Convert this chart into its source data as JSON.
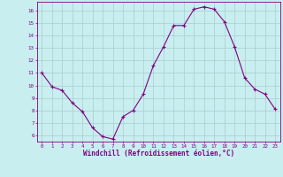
{
  "x": [
    0,
    1,
    2,
    3,
    4,
    5,
    6,
    7,
    8,
    9,
    10,
    11,
    12,
    13,
    14,
    15,
    16,
    17,
    18,
    19,
    20,
    21,
    22,
    23
  ],
  "y": [
    11.0,
    9.9,
    9.6,
    8.6,
    7.9,
    6.6,
    5.9,
    5.7,
    7.5,
    8.0,
    9.3,
    11.6,
    13.1,
    14.8,
    14.8,
    16.1,
    16.3,
    16.1,
    15.1,
    13.1,
    10.6,
    9.7,
    9.3,
    8.1
  ],
  "line_color": "#800080",
  "marker": "+",
  "marker_color": "#800080",
  "bg_color": "#c8eef0",
  "grid_color": "#aacccc",
  "xlabel": "Windchill (Refroidissement éolien,°C)",
  "xlabel_color": "#800080",
  "tick_color": "#800080",
  "ylim_min": 5.5,
  "ylim_max": 16.7,
  "xlim_min": -0.5,
  "xlim_max": 23.5,
  "yticks": [
    6,
    7,
    8,
    9,
    10,
    11,
    12,
    13,
    14,
    15,
    16
  ],
  "xticks": [
    0,
    1,
    2,
    3,
    4,
    5,
    6,
    7,
    8,
    9,
    10,
    11,
    12,
    13,
    14,
    15,
    16,
    17,
    18,
    19,
    20,
    21,
    22,
    23
  ]
}
